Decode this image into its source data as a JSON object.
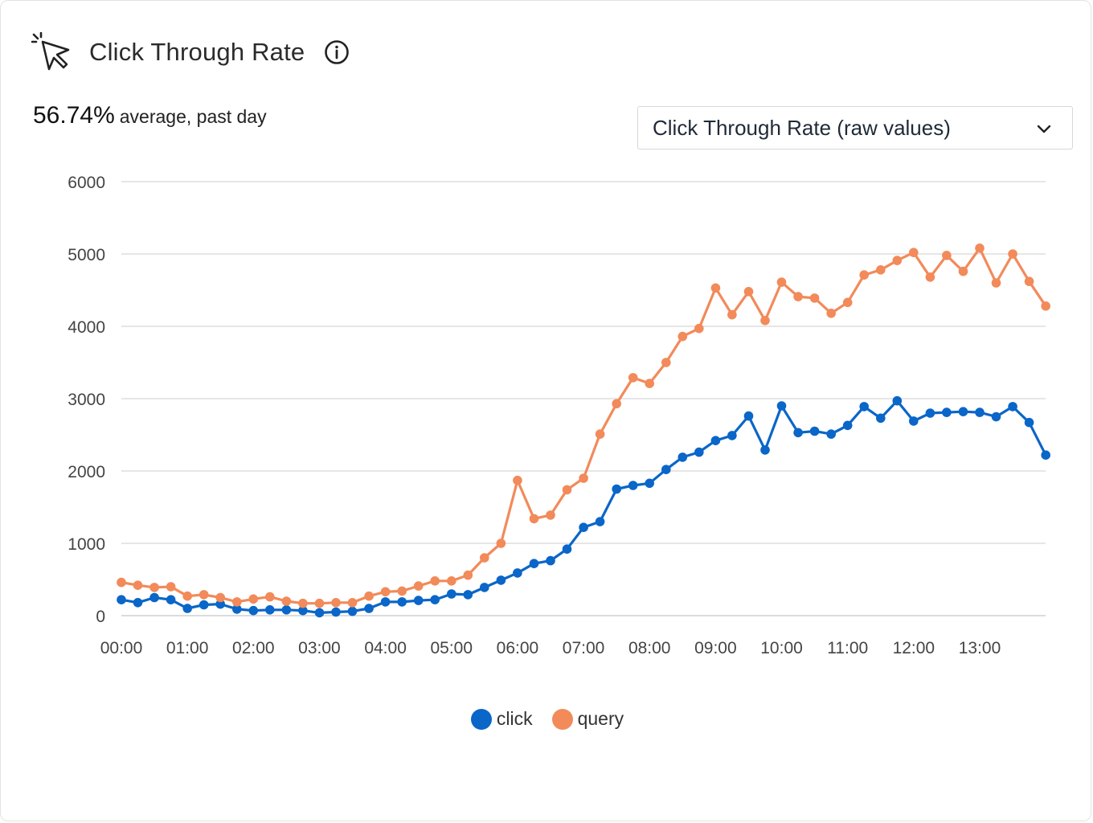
{
  "header": {
    "title": "Click Through Rate"
  },
  "summary": {
    "value": "56.74%",
    "text": "average, past day"
  },
  "select": {
    "value": "Click Through Rate (raw values)"
  },
  "colors": {
    "click": "#0a66c8",
    "query": "#f28a5a",
    "grid": "#dedede",
    "axis": "#cfcfcf"
  },
  "chart_data": {
    "type": "line",
    "ylim": [
      0,
      6000
    ],
    "yticks": [
      "0",
      "1000",
      "2000",
      "3000",
      "4000",
      "5000",
      "6000"
    ],
    "xticks": [
      "00:00",
      "01:00",
      "02:00",
      "03:00",
      "04:00",
      "05:00",
      "06:00",
      "07:00",
      "08:00",
      "09:00",
      "10:00",
      "11:00",
      "12:00",
      "13:00"
    ],
    "x_start": "00:00",
    "x_step_minutes": 15,
    "grid": true,
    "legend": "bottom-center",
    "series": [
      {
        "name": "click",
        "values": [
          220,
          180,
          250,
          220,
          100,
          150,
          160,
          90,
          70,
          80,
          80,
          70,
          40,
          50,
          60,
          100,
          190,
          190,
          210,
          220,
          300,
          290,
          390,
          490,
          590,
          720,
          760,
          920,
          1220,
          1300,
          1750,
          1800,
          1830,
          2020,
          2190,
          2260,
          2420,
          2490,
          2760,
          2290,
          2900,
          2530,
          2550,
          2510,
          2630,
          2890,
          2730,
          2970,
          2690,
          2800,
          2810,
          2820,
          2810,
          2750,
          2890,
          2670,
          2220
        ]
      },
      {
        "name": "query",
        "values": [
          460,
          420,
          390,
          400,
          270,
          290,
          250,
          190,
          230,
          260,
          200,
          170,
          170,
          180,
          180,
          270,
          330,
          340,
          410,
          480,
          480,
          560,
          800,
          1000,
          1870,
          1340,
          1390,
          1740,
          1900,
          2510,
          2930,
          3290,
          3210,
          3500,
          3860,
          3970,
          4530,
          4160,
          4480,
          4080,
          4610,
          4410,
          4390,
          4180,
          4330,
          4710,
          4780,
          4910,
          5020,
          4680,
          4980,
          4760,
          5080,
          4600,
          5000,
          4620,
          4280
        ]
      }
    ]
  },
  "legend": {
    "click_label": "click",
    "query_label": "query"
  }
}
